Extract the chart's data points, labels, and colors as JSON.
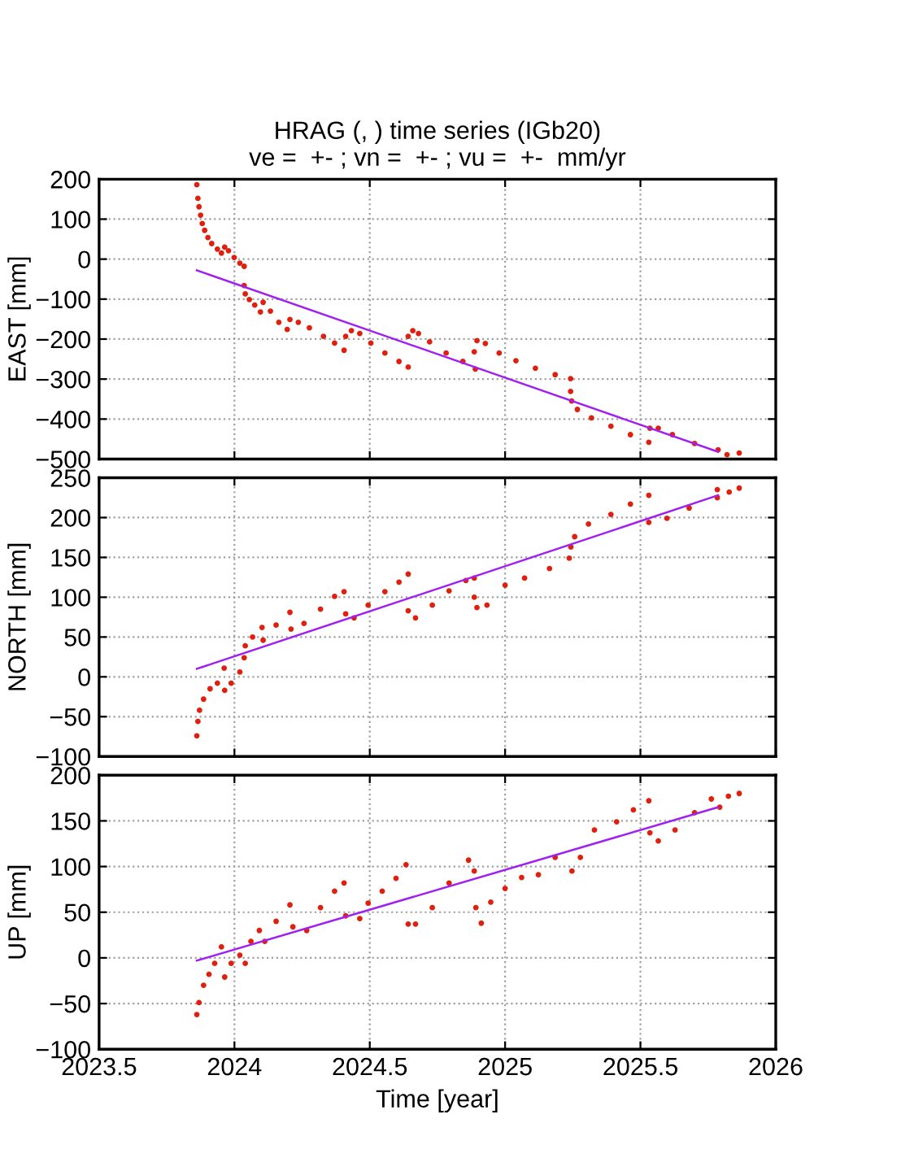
{
  "chart_data": [
    {
      "type": "scatter",
      "title": "HRAG (, ) time series (IGb20)",
      "subtitle": "ve =  +- ; vn =  +- ; vu =  +-  mm/yr",
      "ylabel": "EAST [mm]",
      "xlim": [
        2023.5,
        2026
      ],
      "xticks": [
        2023.5,
        2024,
        2024.5,
        2025,
        2025.5,
        2026
      ],
      "ylim": [
        -500,
        200
      ],
      "yticks": [
        -500,
        -400,
        -300,
        -200,
        -100,
        0,
        100,
        200
      ],
      "grid": true,
      "tick_labels": "y",
      "series": [
        {
          "marker": "circle",
          "color": "#e0200f",
          "x": [
            2023.861,
            2023.865,
            2023.869,
            2023.875,
            2023.881,
            2023.89,
            2023.902,
            2023.916,
            2023.937,
            2023.952,
            2023.964,
            2023.978,
            2023.999,
            2024.02,
            2024.036,
            2024.036,
            2024.04,
            2024.055,
            2024.075,
            2024.096,
            2024.106,
            2024.133,
            2024.164,
            2024.195,
            2024.205,
            2024.236,
            2024.277,
            2024.329,
            2024.37,
            2024.405,
            2024.411,
            2024.432,
            2024.463,
            2024.504,
            2024.556,
            2024.608,
            2024.642,
            2024.642,
            2024.659,
            2024.68,
            2024.721,
            2024.782,
            2024.844,
            2024.89,
            2024.886,
            2024.896,
            2024.927,
            2024.978,
            2025.04,
            2025.112,
            2025.185,
            2025.242,
            2025.242,
            2025.246,
            2025.267,
            2025.319,
            2025.391,
            2025.463,
            2025.531,
            2025.535,
            2025.566,
            2025.618,
            2025.7,
            2025.787,
            2025.82,
            2025.865
          ],
          "values": [
            186,
            152,
            131,
            110,
            89,
            72,
            54,
            39,
            25,
            15,
            30,
            21,
            4,
            -10,
            -18,
            -66,
            -87,
            -101,
            -115,
            -132,
            -108,
            -130,
            -158,
            -176,
            -151,
            -158,
            -172,
            -193,
            -210,
            -228,
            -193,
            -179,
            -186,
            -210,
            -235,
            -256,
            -270,
            -193,
            -179,
            -186,
            -207,
            -235,
            -256,
            -275,
            -232,
            -204,
            -211,
            -235,
            -254,
            -273,
            -289,
            -299,
            -331,
            -355,
            -376,
            -397,
            -418,
            -439,
            -458,
            -423,
            -423,
            -439,
            -461,
            -477,
            -489,
            -485
          ]
        },
        {
          "type": "line",
          "color": "#a020f0",
          "x": [
            2023.861,
            2025.787
          ],
          "values": [
            -28,
            -482
          ]
        }
      ]
    },
    {
      "type": "scatter",
      "ylabel": "NORTH [mm]",
      "xlim": [
        2023.5,
        2026
      ],
      "xticks": [
        2023.5,
        2024,
        2024.5,
        2025,
        2025.5,
        2026
      ],
      "ylim": [
        -100,
        250
      ],
      "yticks": [
        -100,
        -50,
        0,
        50,
        100,
        150,
        200,
        250
      ],
      "grid": true,
      "tick_labels": "y",
      "series": [
        {
          "marker": "circle",
          "color": "#e0200f",
          "x": [
            2023.861,
            2023.865,
            2023.871,
            2023.886,
            2023.91,
            2023.937,
            2023.962,
            2023.964,
            2023.988,
            2024.02,
            2024.036,
            2024.04,
            2024.067,
            2024.102,
            2024.106,
            2024.154,
            2024.205,
            2024.209,
            2024.257,
            2024.318,
            2024.37,
            2024.405,
            2024.411,
            2024.442,
            2024.494,
            2024.556,
            2024.608,
            2024.642,
            2024.642,
            2024.669,
            2024.731,
            2024.793,
            2024.855,
            2024.886,
            2024.886,
            2024.896,
            2024.933,
            2025.0,
            2025.072,
            2025.164,
            2025.237,
            2025.243,
            2025.257,
            2025.308,
            2025.391,
            2025.463,
            2025.531,
            2025.531,
            2025.598,
            2025.68,
            2025.784,
            2025.784,
            2025.828,
            2025.865
          ],
          "values": [
            -74,
            -56,
            -42,
            -28,
            -15,
            -8,
            11,
            -17,
            -8,
            6,
            24,
            39,
            50,
            62,
            46,
            65,
            81,
            60,
            67,
            85,
            101,
            107,
            79,
            74,
            90,
            107,
            119,
            129,
            83,
            74,
            90,
            108,
            121,
            124,
            100,
            87,
            90,
            115,
            124,
            136,
            149,
            163,
            176,
            192,
            204,
            217,
            228,
            194,
            199,
            212,
            225,
            235,
            232,
            237
          ]
        },
        {
          "type": "line",
          "color": "#a020f0",
          "x": [
            2023.861,
            2025.787
          ],
          "values": [
            10,
            228
          ]
        }
      ]
    },
    {
      "type": "scatter",
      "xlabel": "Time [year]",
      "ylabel": "UP [mm]",
      "xlim": [
        2023.5,
        2026
      ],
      "xticks": [
        2023.5,
        2024,
        2024.5,
        2025,
        2025.5,
        2026
      ],
      "ylim": [
        -100,
        200
      ],
      "yticks": [
        -100,
        -50,
        0,
        50,
        100,
        150,
        200
      ],
      "grid": true,
      "series": [
        {
          "marker": "circle",
          "color": "#e0200f",
          "x": [
            2023.861,
            2023.869,
            2023.886,
            2023.906,
            2023.927,
            2023.952,
            2023.964,
            2023.988,
            2024.02,
            2024.04,
            2024.061,
            2024.092,
            2024.112,
            2024.154,
            2024.205,
            2024.216,
            2024.267,
            2024.318,
            2024.37,
            2024.405,
            2024.411,
            2024.463,
            2024.494,
            2024.546,
            2024.597,
            2024.634,
            2024.642,
            2024.669,
            2024.731,
            2024.793,
            2024.865,
            2024.886,
            2024.892,
            2024.912,
            2024.947,
            2025.0,
            2025.061,
            2025.123,
            2025.185,
            2025.247,
            2025.278,
            2025.33,
            2025.412,
            2025.474,
            2025.531,
            2025.535,
            2025.566,
            2025.628,
            2025.7,
            2025.762,
            2025.793,
            2025.825,
            2025.865
          ],
          "values": [
            -62,
            -49,
            -30,
            -18,
            -6,
            12,
            -21,
            -6,
            3,
            -6,
            18,
            30,
            18,
            40,
            58,
            34,
            30,
            55,
            73,
            82,
            46,
            43,
            60,
            73,
            87,
            102,
            37,
            37,
            55,
            82,
            107,
            95,
            55,
            38,
            61,
            76,
            88,
            91,
            110,
            95,
            110,
            140,
            149,
            162,
            172,
            137,
            128,
            140,
            159,
            174,
            165,
            177,
            180
          ]
        },
        {
          "type": "line",
          "color": "#a020f0",
          "x": [
            2023.861,
            2025.787
          ],
          "values": [
            -3,
            165
          ]
        }
      ]
    }
  ]
}
